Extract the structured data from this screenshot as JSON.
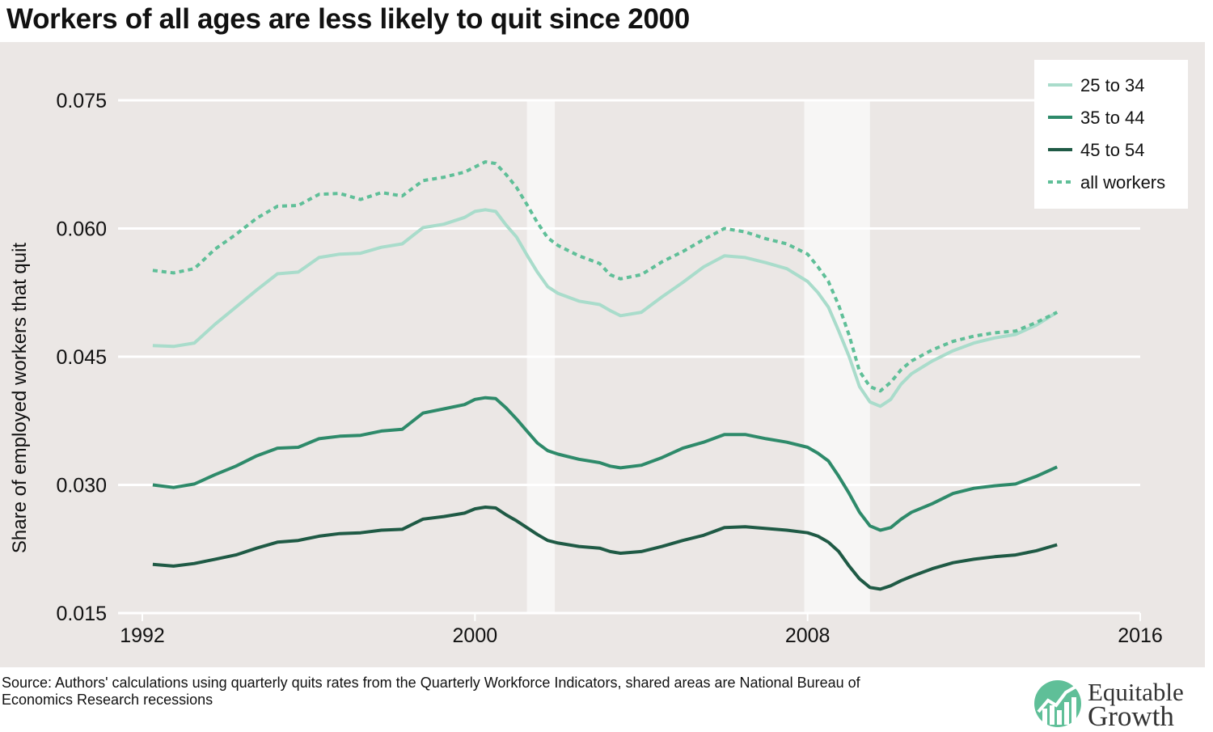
{
  "chart_data": {
    "type": "line",
    "title": "Workers of all ages are less likely to quit since 2000",
    "ylabel": "Share of employed workers that quit",
    "xlabel": "",
    "xlim": [
      1992,
      2016
    ],
    "ylim": [
      0.015,
      0.075
    ],
    "x_ticks": [
      "1992",
      "2000",
      "2008",
      "2016"
    ],
    "y_ticks": [
      "0.015",
      "0.030",
      "0.045",
      "0.060",
      "0.075"
    ],
    "grid": "horizontal",
    "legend_position": "top-right",
    "recessions": [
      [
        2001.25,
        2001.92
      ],
      [
        2007.92,
        2009.5
      ]
    ],
    "series": [
      {
        "name": "25 to 34",
        "color": "#a9dccb",
        "style": "solid",
        "x": [
          1992.25,
          1992.75,
          1993.25,
          1993.75,
          1994.25,
          1994.75,
          1995.25,
          1995.75,
          1996.25,
          1996.75,
          1997.25,
          1997.75,
          1998.25,
          1998.75,
          1999.25,
          1999.75,
          2000.0,
          2000.25,
          2000.5,
          2000.75,
          2001.0,
          2001.25,
          2001.5,
          2001.75,
          2002.0,
          2002.5,
          2003.0,
          2003.25,
          2003.5,
          2004.0,
          2004.5,
          2005.0,
          2005.5,
          2006.0,
          2006.5,
          2007.0,
          2007.5,
          2008.0,
          2008.25,
          2008.5,
          2008.75,
          2009.0,
          2009.25,
          2009.5,
          2009.75,
          2010.0,
          2010.25,
          2010.5,
          2011.0,
          2011.5,
          2012.0,
          2012.5,
          2013.0,
          2013.5,
          2014.0
        ],
        "values": [
          0.0463,
          0.0462,
          0.0466,
          0.0488,
          0.0508,
          0.0528,
          0.0547,
          0.0549,
          0.0566,
          0.057,
          0.0571,
          0.0578,
          0.0582,
          0.0601,
          0.0605,
          0.0613,
          0.062,
          0.0622,
          0.062,
          0.0604,
          0.059,
          0.0569,
          0.0549,
          0.0532,
          0.0524,
          0.0515,
          0.0511,
          0.0504,
          0.0498,
          0.0502,
          0.052,
          0.0537,
          0.0555,
          0.0568,
          0.0566,
          0.056,
          0.0553,
          0.0538,
          0.0525,
          0.0508,
          0.048,
          0.045,
          0.0415,
          0.0397,
          0.0392,
          0.04,
          0.0418,
          0.043,
          0.0445,
          0.0457,
          0.0466,
          0.0472,
          0.0476,
          0.0487,
          0.0502
        ]
      },
      {
        "name": "35 to 44",
        "color": "#2e8a6a",
        "style": "solid",
        "x": [
          1992.25,
          1992.75,
          1993.25,
          1993.75,
          1994.25,
          1994.75,
          1995.25,
          1995.75,
          1996.25,
          1996.75,
          1997.25,
          1997.75,
          1998.25,
          1998.75,
          1999.25,
          1999.75,
          2000.0,
          2000.25,
          2000.5,
          2000.75,
          2001.0,
          2001.25,
          2001.5,
          2001.75,
          2002.0,
          2002.5,
          2003.0,
          2003.25,
          2003.5,
          2004.0,
          2004.5,
          2005.0,
          2005.5,
          2006.0,
          2006.5,
          2007.0,
          2007.5,
          2008.0,
          2008.25,
          2008.5,
          2008.75,
          2009.0,
          2009.25,
          2009.5,
          2009.75,
          2010.0,
          2010.25,
          2010.5,
          2011.0,
          2011.5,
          2012.0,
          2012.5,
          2013.0,
          2013.5,
          2014.0
        ],
        "values": [
          0.03,
          0.0297,
          0.0301,
          0.0312,
          0.0322,
          0.0334,
          0.0343,
          0.0344,
          0.0354,
          0.0357,
          0.0358,
          0.0363,
          0.0365,
          0.0384,
          0.0389,
          0.0394,
          0.04,
          0.0402,
          0.0401,
          0.039,
          0.0377,
          0.0363,
          0.0349,
          0.034,
          0.0336,
          0.033,
          0.0326,
          0.0322,
          0.032,
          0.0323,
          0.0332,
          0.0343,
          0.035,
          0.0359,
          0.0359,
          0.0354,
          0.035,
          0.0344,
          0.0337,
          0.0328,
          0.031,
          0.029,
          0.0268,
          0.0252,
          0.0247,
          0.025,
          0.026,
          0.0268,
          0.0278,
          0.029,
          0.0296,
          0.0299,
          0.0301,
          0.031,
          0.0321
        ]
      },
      {
        "name": "45 to 54",
        "color": "#1f5a45",
        "style": "solid",
        "x": [
          1992.25,
          1992.75,
          1993.25,
          1993.75,
          1994.25,
          1994.75,
          1995.25,
          1995.75,
          1996.25,
          1996.75,
          1997.25,
          1997.75,
          1998.25,
          1998.75,
          1999.25,
          1999.75,
          2000.0,
          2000.25,
          2000.5,
          2000.75,
          2001.0,
          2001.25,
          2001.5,
          2001.75,
          2002.0,
          2002.5,
          2003.0,
          2003.25,
          2003.5,
          2004.0,
          2004.5,
          2005.0,
          2005.5,
          2006.0,
          2006.5,
          2007.0,
          2007.5,
          2008.0,
          2008.25,
          2008.5,
          2008.75,
          2009.0,
          2009.25,
          2009.5,
          2009.75,
          2010.0,
          2010.25,
          2010.5,
          2011.0,
          2011.5,
          2012.0,
          2012.5,
          2013.0,
          2013.5,
          2014.0
        ],
        "values": [
          0.0207,
          0.0205,
          0.0208,
          0.0213,
          0.0218,
          0.0226,
          0.0233,
          0.0235,
          0.024,
          0.0243,
          0.0244,
          0.0247,
          0.0248,
          0.026,
          0.0263,
          0.0267,
          0.0272,
          0.0274,
          0.0273,
          0.0265,
          0.0258,
          0.025,
          0.0242,
          0.0235,
          0.0232,
          0.0228,
          0.0226,
          0.0222,
          0.022,
          0.0222,
          0.0228,
          0.0235,
          0.0241,
          0.025,
          0.0251,
          0.0249,
          0.0247,
          0.0244,
          0.024,
          0.0233,
          0.0222,
          0.0205,
          0.019,
          0.018,
          0.0178,
          0.0182,
          0.0188,
          0.0193,
          0.0202,
          0.0209,
          0.0213,
          0.0216,
          0.0218,
          0.0223,
          0.023
        ]
      },
      {
        "name": "all workers",
        "color": "#5fbf98",
        "style": "dotted",
        "x": [
          1992.25,
          1992.75,
          1993.25,
          1993.75,
          1994.25,
          1994.75,
          1995.25,
          1995.75,
          1996.25,
          1996.75,
          1997.25,
          1997.75,
          1998.25,
          1998.75,
          1999.25,
          1999.75,
          2000.0,
          2000.25,
          2000.5,
          2000.75,
          2001.0,
          2001.25,
          2001.5,
          2001.75,
          2002.0,
          2002.5,
          2003.0,
          2003.25,
          2003.5,
          2004.0,
          2004.5,
          2005.0,
          2005.5,
          2006.0,
          2006.5,
          2007.0,
          2007.5,
          2008.0,
          2008.25,
          2008.5,
          2008.75,
          2009.0,
          2009.25,
          2009.5,
          2009.75,
          2010.0,
          2010.25,
          2010.5,
          2011.0,
          2011.5,
          2012.0,
          2012.5,
          2013.0,
          2013.5,
          2014.0
        ],
        "values": [
          0.0551,
          0.0548,
          0.0553,
          0.0576,
          0.0593,
          0.0612,
          0.0626,
          0.0627,
          0.064,
          0.0641,
          0.0634,
          0.0642,
          0.0638,
          0.0656,
          0.066,
          0.0666,
          0.0672,
          0.0678,
          0.0676,
          0.0663,
          0.0648,
          0.0628,
          0.0607,
          0.0589,
          0.058,
          0.0568,
          0.0559,
          0.0546,
          0.0541,
          0.0546,
          0.0561,
          0.0573,
          0.0587,
          0.06,
          0.0596,
          0.0588,
          0.0582,
          0.057,
          0.0555,
          0.0538,
          0.051,
          0.0475,
          0.0433,
          0.0415,
          0.041,
          0.042,
          0.0435,
          0.0445,
          0.0458,
          0.0468,
          0.0474,
          0.0478,
          0.048,
          0.049,
          0.0502
        ]
      }
    ]
  },
  "source_text": "Source: Authors' calculations using quarterly quits rates from the Quarterly Workforce Indicators, shared areas are National Bureau of Economics Research recessions",
  "logo": {
    "line1": "Equitable",
    "line2": "Growth",
    "mark_color": "#5fbf98"
  }
}
